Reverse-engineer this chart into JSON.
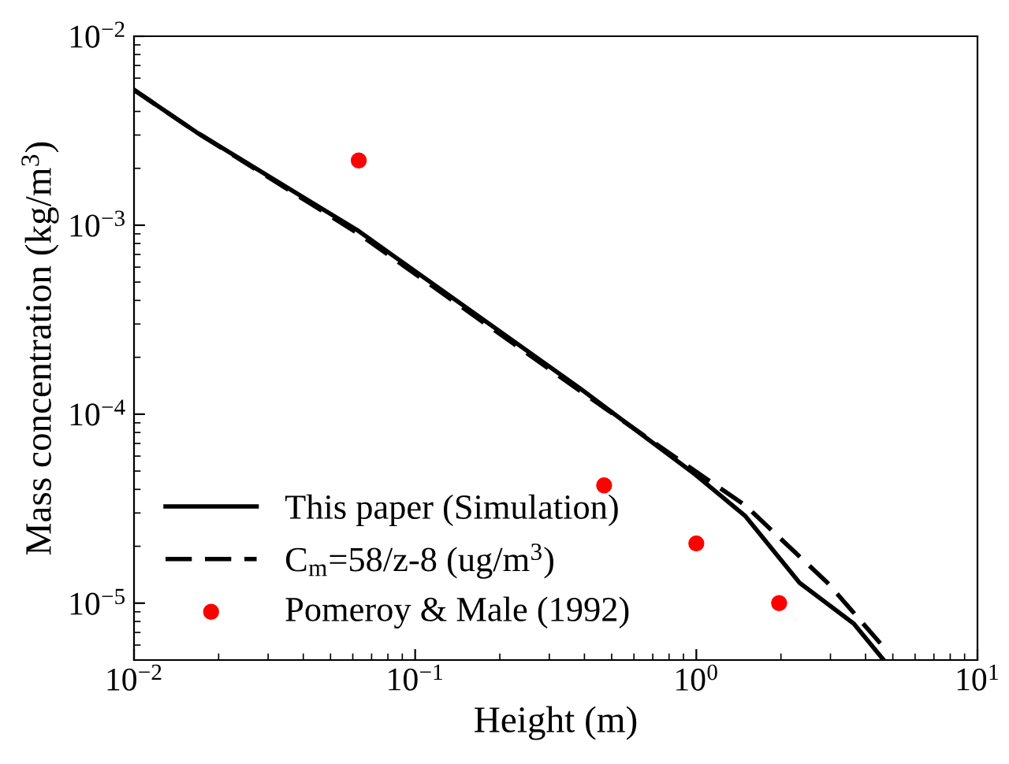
{
  "chart_data": {
    "type": "line",
    "xlabel": "Height (m)",
    "ylabel": "Mass concentration (kg/m$^{3}$)",
    "log": "xy",
    "legend": "bottom left",
    "grid": false,
    "xlim": [
      0.01,
      10
    ],
    "ylim": [
      5e-06,
      0.01
    ],
    "xticks": [
      {
        "value": 0.01,
        "label": "10$^{−2}$"
      },
      {
        "value": 0.1,
        "label": "10$^{−1}$"
      },
      {
        "value": 1,
        "label": "10$^{0}$"
      },
      {
        "value": 10,
        "label": "10$^{1}$"
      }
    ],
    "yticks": [
      {
        "value": 1e-05,
        "label": "10$^{−5}$"
      },
      {
        "value": 0.0001,
        "label": "10$^{−4}$"
      },
      {
        "value": 0.001,
        "label": "10$^{−3}$"
      },
      {
        "value": 0.01,
        "label": "10$^{−2}$"
      }
    ],
    "series": [
      {
        "name": "This paper (Simulation)",
        "type": "line",
        "color": "#000000",
        "line_style": "solid",
        "marker": "none",
        "x": [
          0.01,
          0.0167,
          0.063,
          0.388,
          0.99,
          1.49,
          2.33,
          3.63,
          4.64
        ],
        "values": [
          0.0052,
          0.0031,
          0.00093,
          0.000136,
          4.8e-05,
          2.9e-05,
          1.28e-05,
          7.8e-06,
          5e-06
        ]
      },
      {
        "name": "C$_{m}$=58/z-8 (ug/m$^{3}$)",
        "type": "line",
        "color": "#000000",
        "line_style": "dashed",
        "marker": "none",
        "x": [
          0.01,
          0.0167,
          0.063,
          0.388,
          0.99,
          1.49,
          2.93,
          4.64
        ],
        "values": [
          0.0052,
          0.0031,
          0.0009,
          0.000132,
          5e-05,
          3.3e-05,
          1.28e-05,
          5.85e-06
        ]
      },
      {
        "name": "Pomeroy & Male (1992)",
        "type": "scatter",
        "color": "#ff0000",
        "marker": "circle",
        "x": [
          0.063,
          0.47,
          1.0,
          1.97
        ],
        "values": [
          0.0022,
          4.2e-05,
          2.07e-05,
          1e-05
        ]
      }
    ]
  }
}
